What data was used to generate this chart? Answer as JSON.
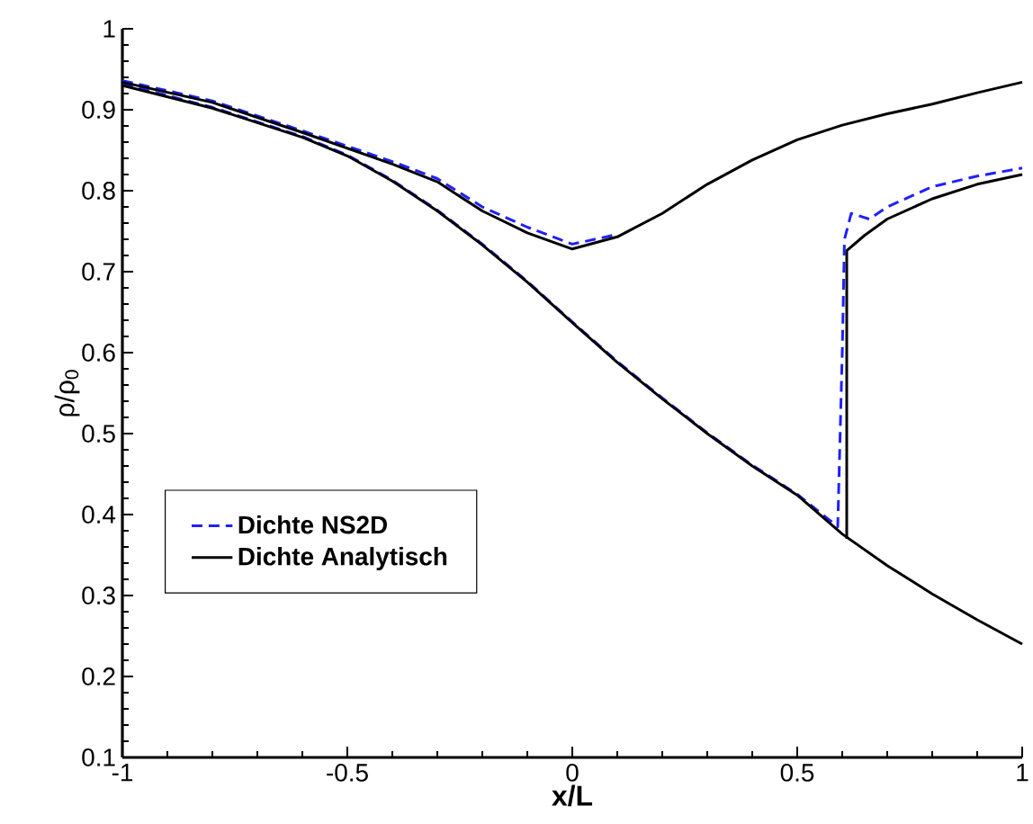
{
  "chart_data": {
    "type": "line",
    "xlabel": "x/L",
    "ylabel": "ρ/ρ$_{0}$",
    "xlim": [
      -1,
      1
    ],
    "ylim": [
      0.1,
      1
    ],
    "xticks": [
      -1,
      -0.5,
      0,
      0.5,
      1
    ],
    "yticks": [
      0.1,
      0.2,
      0.3,
      0.4,
      0.5,
      0.6,
      0.7,
      0.8,
      0.9,
      1
    ],
    "grid": false,
    "legend": "left",
    "marker": "none",
    "series": [
      {
        "name": "Dichte NS2D",
        "color": "#2020ff",
        "line_style": "dashed",
        "x": [
          -1,
          -0.8,
          -0.6,
          -0.4,
          -0.3,
          -0.2,
          -0.1,
          0,
          0.1
        ],
        "values": [
          0.936,
          0.911,
          0.874,
          0.836,
          0.815,
          0.78,
          0.755,
          0.734,
          0.746
        ]
      },
      {
        "color": "#2020ff",
        "line_style": "dashed",
        "x": [
          -1,
          -0.8,
          -0.6,
          -0.5,
          -0.4,
          -0.3,
          -0.2,
          -0.1,
          0,
          0.1,
          0.2,
          0.3,
          0.4,
          0.5,
          0.59,
          0.6,
          0.605,
          0.62,
          0.66,
          0.7,
          0.8,
          0.9,
          1
        ],
        "values": [
          0.932,
          0.903,
          0.867,
          0.844,
          0.813,
          0.776,
          0.734,
          0.688,
          0.638,
          0.589,
          0.544,
          0.501,
          0.461,
          0.425,
          0.385,
          0.6,
          0.74,
          0.772,
          0.765,
          0.78,
          0.805,
          0.818,
          0.828
        ]
      },
      {
        "name": "Dichte Analytisch",
        "color": "#000000",
        "line_style": "solid",
        "x": [
          -1,
          -0.8,
          -0.6,
          -0.4,
          -0.3,
          -0.2,
          -0.1,
          0,
          0.1,
          0.2,
          0.3,
          0.4,
          0.5,
          0.6,
          0.7,
          0.8,
          0.9,
          1
        ],
        "values": [
          0.934,
          0.909,
          0.872,
          0.833,
          0.811,
          0.775,
          0.748,
          0.728,
          0.743,
          0.772,
          0.808,
          0.838,
          0.863,
          0.881,
          0.895,
          0.907,
          0.921,
          0.934
        ]
      },
      {
        "color": "#000000",
        "line_style": "solid",
        "x": [
          -1,
          -0.8,
          -0.6,
          -0.5,
          -0.4,
          -0.3,
          -0.2,
          -0.1,
          0,
          0.1,
          0.2,
          0.3,
          0.4,
          0.5,
          0.6,
          0.7,
          0.8,
          0.9,
          1
        ],
        "values": [
          0.93,
          0.902,
          0.866,
          0.843,
          0.812,
          0.775,
          0.733,
          0.687,
          0.637,
          0.588,
          0.543,
          0.5,
          0.46,
          0.424,
          0.376,
          0.337,
          0.302,
          0.27,
          0.24
        ]
      },
      {
        "color": "#000000",
        "line_style": "solid",
        "x": [
          0.61,
          0.61,
          0.65,
          0.7,
          0.8,
          0.9,
          1
        ],
        "values": [
          0.37,
          0.726,
          0.745,
          0.765,
          0.79,
          0.808,
          0.82
        ]
      }
    ]
  }
}
